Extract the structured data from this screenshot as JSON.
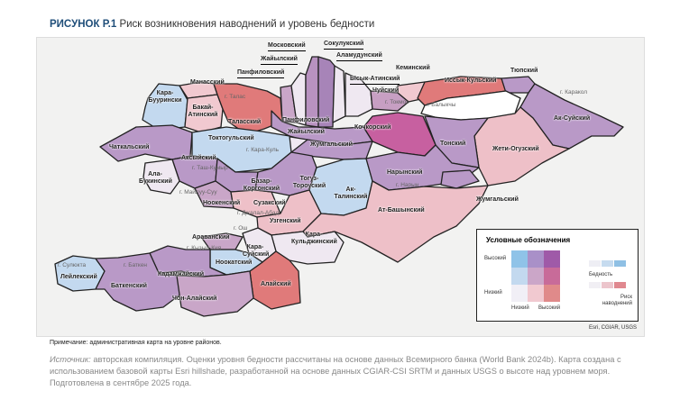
{
  "figure": {
    "label": "РИСУНОК Р.1",
    "title": "Риск возникновения наводнений и уровень бедности"
  },
  "districts": [
    "Манасский",
    "Кара-Буурински",
    "Бакай-Атинский",
    "Таласский",
    "Московский",
    "Жайылский",
    "Панфиловский",
    "Сокулукский",
    "Аламудунский",
    "Ысык-Атинский",
    "Чуйский",
    "Кеминский",
    "Иссык-Кульский",
    "Тюпский",
    "Ак-Суйский",
    "Жети-Огузский",
    "Тонский",
    "Кочкорский",
    "Панфиловский",
    "Жайылский",
    "Жумгальский",
    "Чаткальский",
    "Токтогульский",
    "Аксыйский",
    "Ала-Букинский",
    "Базар-Коргонский",
    "Ноокенский",
    "Сузакский",
    "Тогуз-Тороуский",
    "Ак-Талинский",
    "Нарынский",
    "Жумгальский",
    "Узгенский",
    "Ат-Башынский",
    "Кара-Кульджинский",
    "Араванский",
    "Кара-Суйский",
    "Ноокатский",
    "Кадамжайский",
    "Лейлекский",
    "Баткенский",
    "Чон-Алайский",
    "Алайский"
  ],
  "cities": [
    "г. Талас",
    "г. Токмок",
    "г. Балыкчы",
    "г. Каракол",
    "г. Кара-Куль",
    "г. Таш-Кумыр",
    "г. Майлуу-Суу",
    "г. Джалал-Абад",
    "г. Нарын",
    "г. Ош",
    "г. Кызыл-Кия",
    "г. Сулюкта",
    "г. Баткен"
  ],
  "legend": {
    "title": "Условные обозначения",
    "high": "Высокий",
    "low": "Низкий",
    "x_low": "Низкий",
    "x_high": "Высокий",
    "poverty": "Бедность",
    "flood_risk": "Риск наводнений",
    "grid_colors": [
      [
        "#8fc3e8",
        "#a990c8",
        "#9f5aa8"
      ],
      [
        "#c3d9ef",
        "#cba6c8",
        "#c86b99"
      ],
      [
        "#f1eff6",
        "#f1c9d0",
        "#e08a8a"
      ]
    ],
    "poverty_colors": [
      "#eeeef4",
      "#c6dbef",
      "#8fc0e4"
    ],
    "flood_colors": [
      "#f1eff4",
      "#ecc5cc",
      "#e0888f"
    ]
  },
  "credit": "Esri, CGIAR, USGS",
  "note": "Примечание: административная карта на уровне районов.",
  "source": {
    "label": "Источник:",
    "text": " авторская компиляция. Оценки уровня бедности рассчитаны на основе данных Всемирного банка (World Bank 2024b). Карта создана с использованием базовой карты Esri hillshade, разработанной на основе данных CGIAR-CSI SRTM и данных USGS о высоте над уровнем моря. Подготовлена в сентябре 2025 года."
  }
}
